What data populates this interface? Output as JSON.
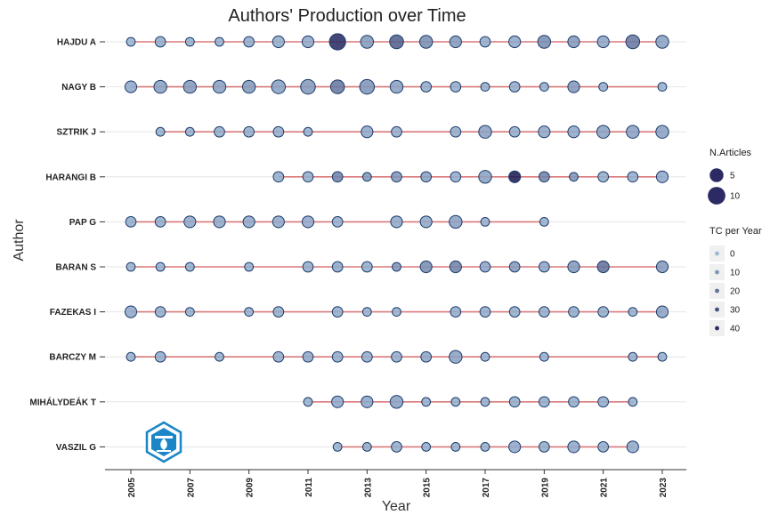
{
  "chart_data": {
    "type": "scatter",
    "title": "Authors' Production over Time",
    "xlabel": "Year",
    "ylabel": "Author",
    "xlim": [
      2004.7,
      2023.4
    ],
    "x_ticks": [
      2005,
      2007,
      2009,
      2011,
      2013,
      2015,
      2017,
      2019,
      2021,
      2023
    ],
    "authors": [
      "HAJDU A",
      "NAGY B",
      "SZTRIK J",
      "HARANGI B",
      "PAP G",
      "BARAN S",
      "FAZEKAS I",
      "BARCZY M",
      "MIHÁLYDEÁK T",
      "VASZIL G"
    ],
    "legend_articles": {
      "title": "N.Articles",
      "values": [
        5,
        10
      ]
    },
    "legend_tc": {
      "title": "TC per Year",
      "values": [
        0,
        10,
        20,
        30,
        40
      ]
    },
    "colors": {
      "low": "#9bb7d4",
      "high": "#1c1c54",
      "segment": "#d9797a",
      "grid": "#e6e6e6"
    },
    "series": [
      {
        "author": "HAJDU A",
        "points": [
          [
            2005,
            1,
            1
          ],
          [
            2006,
            2,
            3
          ],
          [
            2007,
            1,
            2
          ],
          [
            2008,
            1,
            2
          ],
          [
            2009,
            2,
            3
          ],
          [
            2010,
            3,
            3
          ],
          [
            2011,
            3,
            4
          ],
          [
            2012,
            8,
            40
          ],
          [
            2013,
            4,
            8
          ],
          [
            2014,
            5,
            25
          ],
          [
            2015,
            4,
            12
          ],
          [
            2016,
            3,
            8
          ],
          [
            2017,
            2,
            3
          ],
          [
            2018,
            3,
            4
          ],
          [
            2019,
            4,
            12
          ],
          [
            2020,
            3,
            8
          ],
          [
            2021,
            3,
            5
          ],
          [
            2022,
            5,
            18
          ],
          [
            2023,
            4,
            6
          ]
        ]
      },
      {
        "author": "NAGY B",
        "points": [
          [
            2005,
            3,
            4
          ],
          [
            2006,
            4,
            6
          ],
          [
            2007,
            4,
            8
          ],
          [
            2008,
            4,
            6
          ],
          [
            2009,
            4,
            8
          ],
          [
            2010,
            5,
            6
          ],
          [
            2011,
            6,
            8
          ],
          [
            2012,
            5,
            18
          ],
          [
            2013,
            6,
            10
          ],
          [
            2014,
            4,
            6
          ],
          [
            2015,
            2,
            3
          ],
          [
            2016,
            2,
            3
          ],
          [
            2017,
            1,
            2
          ],
          [
            2018,
            2,
            3
          ],
          [
            2019,
            1,
            2
          ],
          [
            2020,
            3,
            8
          ],
          [
            2021,
            1,
            2
          ],
          [
            2023,
            1,
            2
          ]
        ]
      },
      {
        "author": "SZTRIK J",
        "points": [
          [
            2006,
            1,
            2
          ],
          [
            2007,
            1,
            2
          ],
          [
            2008,
            2,
            3
          ],
          [
            2009,
            2,
            3
          ],
          [
            2010,
            2,
            3
          ],
          [
            2011,
            1,
            2
          ],
          [
            2013,
            3,
            4
          ],
          [
            2014,
            2,
            3
          ],
          [
            2016,
            2,
            3
          ],
          [
            2017,
            4,
            6
          ],
          [
            2018,
            2,
            3
          ],
          [
            2019,
            3,
            4
          ],
          [
            2020,
            3,
            4
          ],
          [
            2021,
            4,
            6
          ],
          [
            2022,
            4,
            6
          ],
          [
            2023,
            4,
            6
          ]
        ]
      },
      {
        "author": "HARANGI B",
        "points": [
          [
            2010,
            2,
            3
          ],
          [
            2011,
            2,
            3
          ],
          [
            2012,
            2,
            15
          ],
          [
            2013,
            1,
            8
          ],
          [
            2014,
            2,
            10
          ],
          [
            2015,
            2,
            6
          ],
          [
            2016,
            2,
            3
          ],
          [
            2017,
            4,
            6
          ],
          [
            2018,
            3,
            45
          ],
          [
            2019,
            2,
            15
          ],
          [
            2020,
            1,
            10
          ],
          [
            2021,
            2,
            3
          ],
          [
            2022,
            2,
            3
          ],
          [
            2023,
            3,
            4
          ]
        ]
      },
      {
        "author": "PAP G",
        "points": [
          [
            2005,
            2,
            3
          ],
          [
            2006,
            2,
            3
          ],
          [
            2007,
            3,
            4
          ],
          [
            2008,
            3,
            4
          ],
          [
            2009,
            3,
            4
          ],
          [
            2010,
            3,
            4
          ],
          [
            2011,
            3,
            4
          ],
          [
            2012,
            2,
            3
          ],
          [
            2014,
            3,
            4
          ],
          [
            2015,
            3,
            4
          ],
          [
            2016,
            4,
            6
          ],
          [
            2017,
            1,
            2
          ],
          [
            2019,
            1,
            2
          ]
        ]
      },
      {
        "author": "BARAN S",
        "points": [
          [
            2005,
            1,
            2
          ],
          [
            2006,
            1,
            2
          ],
          [
            2007,
            1,
            2
          ],
          [
            2009,
            1,
            2
          ],
          [
            2011,
            2,
            3
          ],
          [
            2012,
            2,
            4
          ],
          [
            2013,
            2,
            3
          ],
          [
            2014,
            1,
            10
          ],
          [
            2015,
            3,
            12
          ],
          [
            2016,
            3,
            15
          ],
          [
            2017,
            2,
            5
          ],
          [
            2018,
            2,
            8
          ],
          [
            2019,
            2,
            5
          ],
          [
            2020,
            3,
            8
          ],
          [
            2021,
            3,
            20
          ],
          [
            2023,
            3,
            8
          ]
        ]
      },
      {
        "author": "FAZEKAS I",
        "points": [
          [
            2005,
            3,
            4
          ],
          [
            2006,
            2,
            3
          ],
          [
            2007,
            1,
            2
          ],
          [
            2009,
            1,
            2
          ],
          [
            2010,
            2,
            3
          ],
          [
            2012,
            2,
            3
          ],
          [
            2013,
            1,
            2
          ],
          [
            2014,
            1,
            2
          ],
          [
            2016,
            2,
            3
          ],
          [
            2017,
            2,
            3
          ],
          [
            2018,
            2,
            3
          ],
          [
            2019,
            2,
            3
          ],
          [
            2020,
            2,
            3
          ],
          [
            2021,
            2,
            3
          ],
          [
            2022,
            1,
            2
          ],
          [
            2023,
            3,
            6
          ]
        ]
      },
      {
        "author": "BARCZY M",
        "points": [
          [
            2005,
            1,
            2
          ],
          [
            2006,
            2,
            3
          ],
          [
            2008,
            1,
            2
          ],
          [
            2010,
            2,
            3
          ],
          [
            2011,
            2,
            4
          ],
          [
            2012,
            2,
            3
          ],
          [
            2013,
            2,
            3
          ],
          [
            2014,
            2,
            3
          ],
          [
            2015,
            2,
            5
          ],
          [
            2016,
            4,
            6
          ],
          [
            2017,
            1,
            2
          ],
          [
            2019,
            1,
            2
          ],
          [
            2022,
            1,
            2
          ],
          [
            2023,
            1,
            2
          ]
        ]
      },
      {
        "author": "MIHÁLYDEÁK T",
        "points": [
          [
            2011,
            1,
            2
          ],
          [
            2012,
            3,
            4
          ],
          [
            2013,
            3,
            5
          ],
          [
            2014,
            4,
            6
          ],
          [
            2015,
            1,
            2
          ],
          [
            2016,
            1,
            2
          ],
          [
            2017,
            1,
            2
          ],
          [
            2018,
            2,
            3
          ],
          [
            2019,
            2,
            3
          ],
          [
            2020,
            2,
            3
          ],
          [
            2021,
            2,
            3
          ],
          [
            2022,
            1,
            2
          ]
        ]
      },
      {
        "author": "VASZIL G",
        "points": [
          [
            2012,
            1,
            2
          ],
          [
            2013,
            1,
            3
          ],
          [
            2014,
            2,
            3
          ],
          [
            2015,
            1,
            2
          ],
          [
            2016,
            1,
            2
          ],
          [
            2017,
            1,
            2
          ],
          [
            2018,
            3,
            4
          ],
          [
            2019,
            2,
            3
          ],
          [
            2020,
            3,
            4
          ],
          [
            2021,
            2,
            3
          ],
          [
            2022,
            3,
            4
          ]
        ]
      }
    ]
  },
  "icons": {
    "watermark": "hexagon-logo-icon"
  }
}
